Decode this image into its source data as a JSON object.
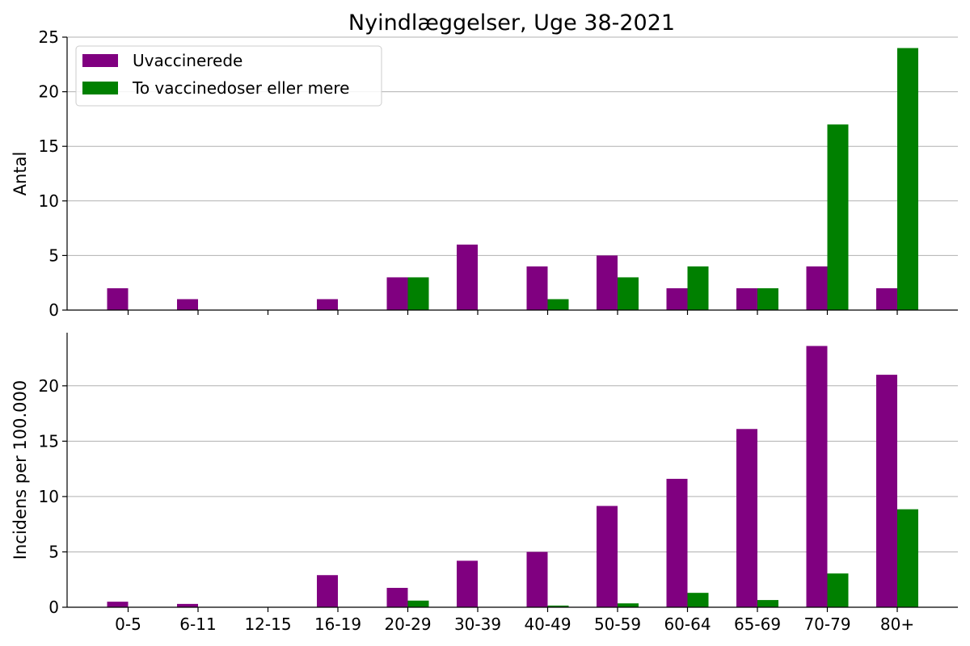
{
  "chart_data": [
    {
      "type": "bar",
      "title": "Nyindlæggelser, Uge 38-2021",
      "xlabel": "",
      "ylabel": "Antal",
      "ylim": [
        0,
        25
      ],
      "yticks": [
        0,
        5,
        10,
        15,
        20,
        25
      ],
      "grid": "y",
      "legend": "top-left",
      "categories": [
        "0-5",
        "6-11",
        "12-15",
        "16-19",
        "20-29",
        "30-39",
        "40-49",
        "50-59",
        "60-64",
        "65-69",
        "70-79",
        "80+"
      ],
      "series": [
        {
          "name": "Uvaccinerede",
          "color": "#800080",
          "values": [
            2,
            1,
            0,
            1,
            3,
            6,
            4,
            5,
            2,
            2,
            4,
            2
          ]
        },
        {
          "name": "To vaccinedoser eller mere",
          "color": "#008000",
          "values": [
            0,
            0,
            0,
            0,
            3,
            0,
            1,
            3,
            4,
            2,
            17,
            24
          ]
        }
      ]
    },
    {
      "type": "bar",
      "title": "",
      "xlabel": "",
      "ylabel": "Incidens per 100.000",
      "ylim": [
        0,
        24.8
      ],
      "yticks": [
        0,
        5,
        10,
        15,
        20
      ],
      "grid": "y",
      "categories": [
        "0-5",
        "6-11",
        "12-15",
        "16-19",
        "20-29",
        "30-39",
        "40-49",
        "50-59",
        "60-64",
        "65-69",
        "70-79",
        "80+"
      ],
      "series": [
        {
          "name": "Uvaccinerede",
          "color": "#800080",
          "values": [
            0.5,
            0.3,
            0,
            2.9,
            1.75,
            4.2,
            5.0,
            9.15,
            11.6,
            16.1,
            23.6,
            21.0
          ]
        },
        {
          "name": "To vaccinedoser eller mere",
          "color": "#008000",
          "values": [
            0,
            0,
            0,
            0,
            0.6,
            0,
            0.15,
            0.35,
            1.3,
            0.65,
            3.05,
            8.85
          ]
        }
      ]
    }
  ]
}
